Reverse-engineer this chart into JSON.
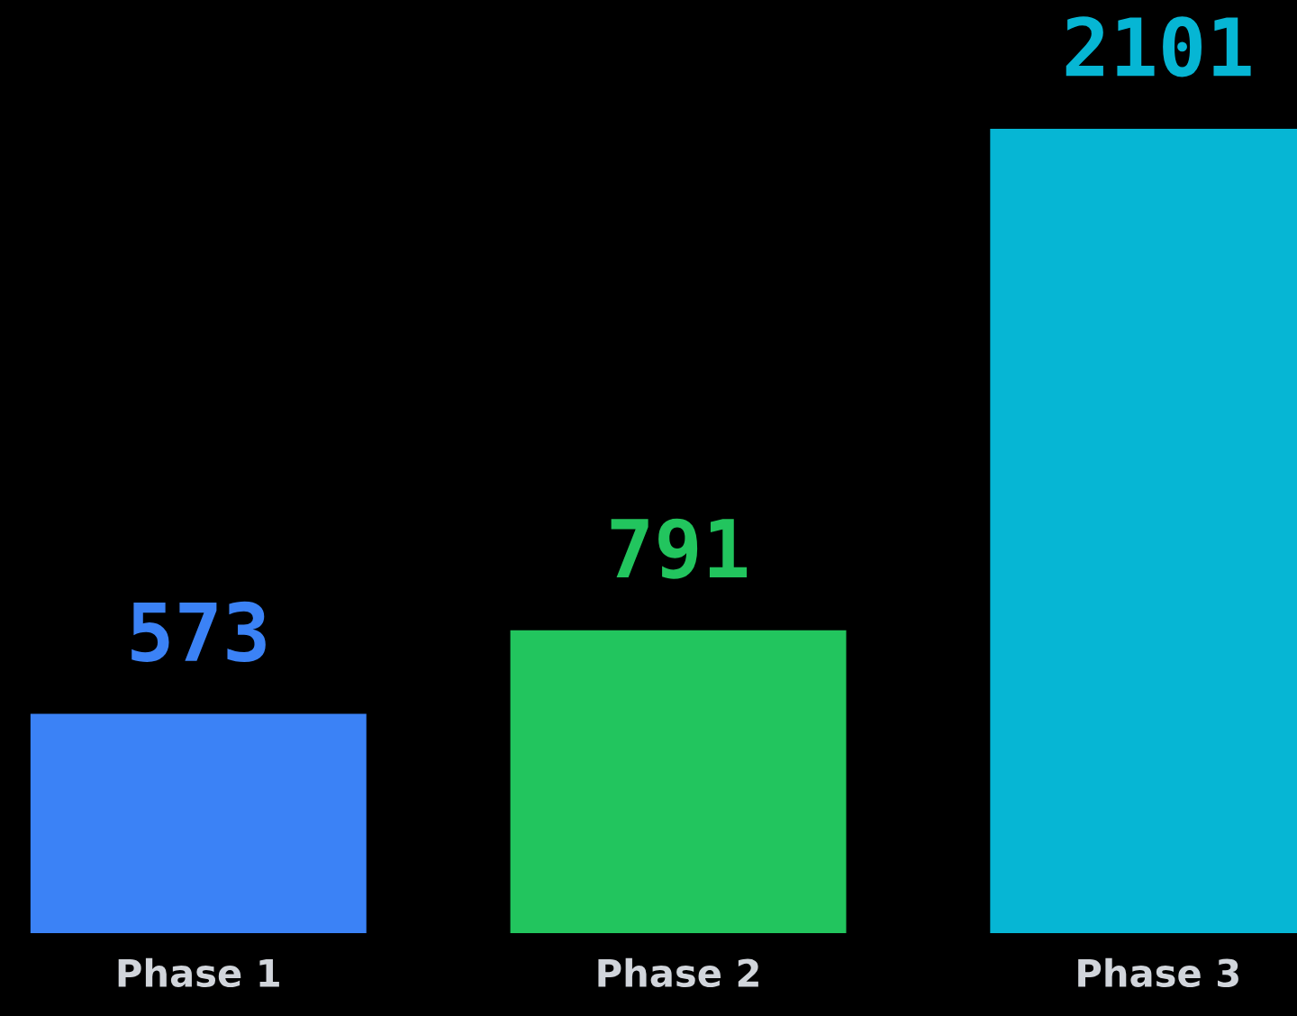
{
  "chart_data": {
    "type": "bar",
    "categories": [
      "Phase 1",
      "Phase 2",
      "Phase 3"
    ],
    "values": [
      573,
      791,
      2101
    ],
    "colors": [
      "#3b82f6",
      "#22c55e",
      "#06b6d4"
    ],
    "data_labels": true
  }
}
